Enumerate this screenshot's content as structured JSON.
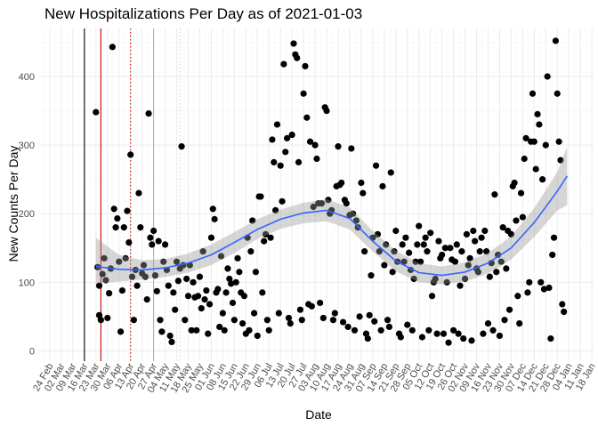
{
  "chart_data": {
    "type": "scatter",
    "title": "New Hospitalizations Per Day as of 2021-01-03",
    "xlabel": "Date",
    "ylabel": "New Counts Per Day",
    "xlim": [
      "2020-02-17",
      "2021-01-19"
    ],
    "ylim": [
      -15,
      470
    ],
    "y_ticks": [
      0,
      100,
      200,
      300,
      400
    ],
    "x_tick_dates": [
      "2020-02-24",
      "2020-03-02",
      "2020-03-09",
      "2020-03-16",
      "2020-03-23",
      "2020-03-30",
      "2020-04-06",
      "2020-04-13",
      "2020-04-20",
      "2020-04-27",
      "2020-05-04",
      "2020-05-11",
      "2020-05-18",
      "2020-05-25",
      "2020-06-01",
      "2020-06-08",
      "2020-06-15",
      "2020-06-22",
      "2020-06-29",
      "2020-07-06",
      "2020-07-13",
      "2020-07-20",
      "2020-07-27",
      "2020-08-03",
      "2020-08-10",
      "2020-08-17",
      "2020-08-24",
      "2020-08-31",
      "2020-09-07",
      "2020-09-14",
      "2020-09-21",
      "2020-09-28",
      "2020-10-05",
      "2020-10-12",
      "2020-10-19",
      "2020-10-26",
      "2020-11-02",
      "2020-11-09",
      "2020-11-16",
      "2020-11-23",
      "2020-11-30",
      "2020-12-07",
      "2020-12-14",
      "2020-12-21",
      "2020-12-28",
      "2021-01-04",
      "2021-01-11",
      "2021-01-18"
    ],
    "x_tick_labels": [
      "24 Feb",
      "02 Mar",
      "09 Mar",
      "16 Mar",
      "23 Mar",
      "30 Mar",
      "06 Apr",
      "13 Apr",
      "20 Apr",
      "27 Apr",
      "04 May",
      "11 May",
      "18 May",
      "25 May",
      "01 Jun",
      "08 Jun",
      "15 Jun",
      "22 Jun",
      "29 Jun",
      "06 Jul",
      "13 Jul",
      "20 Jul",
      "27 Jul",
      "03 Aug",
      "10 Aug",
      "17 Aug",
      "24 Aug",
      "31 Aug",
      "07 Sep",
      "14 Sep",
      "21 Sep",
      "28 Sep",
      "05 Oct",
      "12 Oct",
      "19 Oct",
      "26 Oct",
      "02 Nov",
      "09 Nov",
      "16 Nov",
      "23 Nov",
      "30 Nov",
      "07 Dec",
      "14 Dec",
      "21 Dec",
      "28 Dec",
      "04 Jan",
      "11 Jan",
      "18 Jan"
    ],
    "grid": true,
    "vlines": [
      {
        "date": "2020-03-16",
        "color": "#000000",
        "style": "solid"
      },
      {
        "date": "2020-03-26",
        "color": "#cc0000",
        "style": "solid"
      },
      {
        "date": "2020-04-13",
        "color": "#cc0000",
        "style": "dotted"
      },
      {
        "date": "2020-04-27",
        "color": "#e8a0a0",
        "style": "solid"
      },
      {
        "date": "2020-05-13",
        "color": "#f0c0c0",
        "style": "dotted"
      }
    ],
    "smooth": {
      "color": "#3366ff",
      "band_color": "#999999",
      "x": [
        "2020-03-23",
        "2020-04-06",
        "2020-04-20",
        "2020-05-04",
        "2020-05-18",
        "2020-06-01",
        "2020-06-15",
        "2020-06-29",
        "2020-07-13",
        "2020-07-27",
        "2020-08-10",
        "2020-08-24",
        "2020-09-07",
        "2020-09-21",
        "2020-10-05",
        "2020-10-19",
        "2020-11-02",
        "2020-11-16",
        "2020-11-30",
        "2020-12-14",
        "2020-12-28",
        "2021-01-03"
      ],
      "y": [
        123,
        119,
        118,
        121,
        128,
        140,
        158,
        177,
        192,
        201,
        205,
        193,
        160,
        131,
        114,
        110,
        115,
        128,
        150,
        187,
        233,
        255
      ],
      "lower": [
        98,
        101,
        104,
        108,
        114,
        125,
        143,
        163,
        178,
        186,
        189,
        177,
        145,
        116,
        100,
        97,
        101,
        113,
        133,
        166,
        205,
        212
      ],
      "upper": [
        165,
        140,
        132,
        134,
        142,
        155,
        173,
        192,
        206,
        216,
        221,
        209,
        175,
        146,
        128,
        123,
        129,
        143,
        167,
        208,
        261,
        298
      ]
    },
    "points": [
      [
        "2020-03-23",
        348
      ],
      [
        "2020-03-24",
        122
      ],
      [
        "2020-03-25",
        95
      ],
      [
        "2020-03-25",
        52
      ],
      [
        "2020-03-26",
        45
      ],
      [
        "2020-03-27",
        112
      ],
      [
        "2020-03-28",
        135
      ],
      [
        "2020-03-29",
        103
      ],
      [
        "2020-03-30",
        48
      ],
      [
        "2020-03-31",
        84
      ],
      [
        "2020-04-01",
        120
      ],
      [
        "2020-04-02",
        443
      ],
      [
        "2020-04-03",
        207
      ],
      [
        "2020-04-04",
        180
      ],
      [
        "2020-04-05",
        193
      ],
      [
        "2020-04-06",
        130
      ],
      [
        "2020-04-07",
        28
      ],
      [
        "2020-04-08",
        88
      ],
      [
        "2020-04-09",
        180
      ],
      [
        "2020-04-10",
        135
      ],
      [
        "2020-04-11",
        204
      ],
      [
        "2020-04-12",
        158
      ],
      [
        "2020-04-13",
        286
      ],
      [
        "2020-04-14",
        108
      ],
      [
        "2020-04-15",
        45
      ],
      [
        "2020-04-16",
        118
      ],
      [
        "2020-04-17",
        95
      ],
      [
        "2020-04-18",
        230
      ],
      [
        "2020-04-19",
        180
      ],
      [
        "2020-04-20",
        113
      ],
      [
        "2020-04-21",
        125
      ],
      [
        "2020-04-22",
        108
      ],
      [
        "2020-04-23",
        75
      ],
      [
        "2020-04-24",
        346
      ],
      [
        "2020-04-25",
        165
      ],
      [
        "2020-04-26",
        155
      ],
      [
        "2020-04-27",
        175
      ],
      [
        "2020-04-28",
        110
      ],
      [
        "2020-04-29",
        87
      ],
      [
        "2020-04-30",
        160
      ],
      [
        "2020-05-01",
        45
      ],
      [
        "2020-05-02",
        28
      ],
      [
        "2020-05-03",
        130
      ],
      [
        "2020-05-04",
        155
      ],
      [
        "2020-05-05",
        118
      ],
      [
        "2020-05-06",
        95
      ],
      [
        "2020-05-07",
        22
      ],
      [
        "2020-05-08",
        13
      ],
      [
        "2020-05-09",
        85
      ],
      [
        "2020-05-10",
        60
      ],
      [
        "2020-05-11",
        130
      ],
      [
        "2020-05-12",
        102
      ],
      [
        "2020-05-13",
        120
      ],
      [
        "2020-05-14",
        298
      ],
      [
        "2020-05-15",
        125
      ],
      [
        "2020-05-16",
        45
      ],
      [
        "2020-05-17",
        105
      ],
      [
        "2020-05-18",
        80
      ],
      [
        "2020-05-19",
        125
      ],
      [
        "2020-05-20",
        30
      ],
      [
        "2020-05-21",
        100
      ],
      [
        "2020-05-22",
        78
      ],
      [
        "2020-05-23",
        30
      ],
      [
        "2020-05-24",
        80
      ],
      [
        "2020-05-25",
        108
      ],
      [
        "2020-05-26",
        62
      ],
      [
        "2020-05-27",
        145
      ],
      [
        "2020-05-28",
        75
      ],
      [
        "2020-05-29",
        88
      ],
      [
        "2020-05-30",
        25
      ],
      [
        "2020-05-31",
        68
      ],
      [
        "2020-06-01",
        165
      ],
      [
        "2020-06-02",
        207
      ],
      [
        "2020-06-03",
        192
      ],
      [
        "2020-06-04",
        85
      ],
      [
        "2020-06-05",
        90
      ],
      [
        "2020-06-06",
        35
      ],
      [
        "2020-06-07",
        138
      ],
      [
        "2020-06-08",
        55
      ],
      [
        "2020-06-09",
        30
      ],
      [
        "2020-06-10",
        85
      ],
      [
        "2020-06-11",
        120
      ],
      [
        "2020-06-12",
        105
      ],
      [
        "2020-06-13",
        98
      ],
      [
        "2020-06-14",
        70
      ],
      [
        "2020-06-15",
        45
      ],
      [
        "2020-06-16",
        100
      ],
      [
        "2020-06-17",
        135
      ],
      [
        "2020-06-18",
        115
      ],
      [
        "2020-06-19",
        85
      ],
      [
        "2020-06-20",
        40
      ],
      [
        "2020-06-21",
        80
      ],
      [
        "2020-06-22",
        25
      ],
      [
        "2020-06-23",
        165
      ],
      [
        "2020-06-24",
        30
      ],
      [
        "2020-06-25",
        145
      ],
      [
        "2020-06-26",
        190
      ],
      [
        "2020-06-27",
        55
      ],
      [
        "2020-06-28",
        115
      ],
      [
        "2020-06-29",
        22
      ],
      [
        "2020-06-30",
        225
      ],
      [
        "2020-07-01",
        225
      ],
      [
        "2020-07-02",
        85
      ],
      [
        "2020-07-03",
        160
      ],
      [
        "2020-07-04",
        170
      ],
      [
        "2020-07-05",
        45
      ],
      [
        "2020-07-06",
        30
      ],
      [
        "2020-07-07",
        165
      ],
      [
        "2020-07-08",
        308
      ],
      [
        "2020-07-09",
        275
      ],
      [
        "2020-07-10",
        205
      ],
      [
        "2020-07-11",
        330
      ],
      [
        "2020-07-12",
        55
      ],
      [
        "2020-07-13",
        270
      ],
      [
        "2020-07-14",
        218
      ],
      [
        "2020-07-15",
        418
      ],
      [
        "2020-07-16",
        290
      ],
      [
        "2020-07-17",
        310
      ],
      [
        "2020-07-18",
        48
      ],
      [
        "2020-07-19",
        40
      ],
      [
        "2020-07-20",
        315
      ],
      [
        "2020-07-21",
        448
      ],
      [
        "2020-07-22",
        432
      ],
      [
        "2020-07-23",
        427
      ],
      [
        "2020-07-24",
        275
      ],
      [
        "2020-07-25",
        60
      ],
      [
        "2020-07-26",
        45
      ],
      [
        "2020-07-27",
        375
      ],
      [
        "2020-07-28",
        415
      ],
      [
        "2020-07-29",
        340
      ],
      [
        "2020-07-30",
        68
      ],
      [
        "2020-07-31",
        305
      ],
      [
        "2020-08-01",
        65
      ],
      [
        "2020-08-02",
        210
      ],
      [
        "2020-08-03",
        300
      ],
      [
        "2020-08-04",
        280
      ],
      [
        "2020-08-05",
        215
      ],
      [
        "2020-08-06",
        70
      ],
      [
        "2020-08-07",
        215
      ],
      [
        "2020-08-08",
        48
      ],
      [
        "2020-08-09",
        355
      ],
      [
        "2020-08-10",
        350
      ],
      [
        "2020-08-11",
        220
      ],
      [
        "2020-08-12",
        200
      ],
      [
        "2020-08-13",
        205
      ],
      [
        "2020-08-14",
        45
      ],
      [
        "2020-08-15",
        55
      ],
      [
        "2020-08-16",
        240
      ],
      [
        "2020-08-17",
        298
      ],
      [
        "2020-08-18",
        242
      ],
      [
        "2020-08-19",
        245
      ],
      [
        "2020-08-20",
        42
      ],
      [
        "2020-08-21",
        220
      ],
      [
        "2020-08-22",
        215
      ],
      [
        "2020-08-23",
        35
      ],
      [
        "2020-08-24",
        198
      ],
      [
        "2020-08-25",
        295
      ],
      [
        "2020-08-26",
        200
      ],
      [
        "2020-08-27",
        30
      ],
      [
        "2020-08-28",
        190
      ],
      [
        "2020-08-29",
        180
      ],
      [
        "2020-08-30",
        50
      ],
      [
        "2020-08-31",
        245
      ],
      [
        "2020-09-01",
        230
      ],
      [
        "2020-09-02",
        145
      ],
      [
        "2020-09-03",
        25
      ],
      [
        "2020-09-04",
        18
      ],
      [
        "2020-09-05",
        52
      ],
      [
        "2020-09-06",
        110
      ],
      [
        "2020-09-07",
        165
      ],
      [
        "2020-09-08",
        43
      ],
      [
        "2020-09-09",
        270
      ],
      [
        "2020-09-10",
        170
      ],
      [
        "2020-09-11",
        145
      ],
      [
        "2020-09-12",
        30
      ],
      [
        "2020-09-13",
        240
      ],
      [
        "2020-09-14",
        125
      ],
      [
        "2020-09-15",
        155
      ],
      [
        "2020-09-16",
        45
      ],
      [
        "2020-09-17",
        35
      ],
      [
        "2020-09-18",
        260
      ],
      [
        "2020-09-19",
        115
      ],
      [
        "2020-09-20",
        145
      ],
      [
        "2020-09-21",
        175
      ],
      [
        "2020-09-22",
        130
      ],
      [
        "2020-09-23",
        25
      ],
      [
        "2020-09-24",
        20
      ],
      [
        "2020-09-25",
        155
      ],
      [
        "2020-09-26",
        130
      ],
      [
        "2020-09-27",
        165
      ],
      [
        "2020-09-28",
        38
      ],
      [
        "2020-09-29",
        143
      ],
      [
        "2020-09-30",
        118
      ],
      [
        "2020-10-01",
        30
      ],
      [
        "2020-10-02",
        105
      ],
      [
        "2020-10-03",
        130
      ],
      [
        "2020-10-04",
        155
      ],
      [
        "2020-10-05",
        182
      ],
      [
        "2020-10-06",
        130
      ],
      [
        "2020-10-07",
        20
      ],
      [
        "2020-10-08",
        155
      ],
      [
        "2020-10-09",
        165
      ],
      [
        "2020-10-10",
        145
      ],
      [
        "2020-10-11",
        30
      ],
      [
        "2020-10-12",
        172
      ],
      [
        "2020-10-13",
        80
      ],
      [
        "2020-10-14",
        100
      ],
      [
        "2020-10-15",
        105
      ],
      [
        "2020-10-16",
        25
      ],
      [
        "2020-10-17",
        160
      ],
      [
        "2020-10-18",
        135
      ],
      [
        "2020-10-19",
        140
      ],
      [
        "2020-10-20",
        25
      ],
      [
        "2020-10-21",
        150
      ],
      [
        "2020-10-22",
        100
      ],
      [
        "2020-10-23",
        12
      ],
      [
        "2020-10-24",
        150
      ],
      [
        "2020-10-25",
        133
      ],
      [
        "2020-10-26",
        30
      ],
      [
        "2020-10-27",
        130
      ],
      [
        "2020-10-28",
        155
      ],
      [
        "2020-10-29",
        25
      ],
      [
        "2020-10-30",
        95
      ],
      [
        "2020-10-31",
        145
      ],
      [
        "2020-11-01",
        18
      ],
      [
        "2020-11-02",
        105
      ],
      [
        "2020-11-03",
        170
      ],
      [
        "2020-11-04",
        125
      ],
      [
        "2020-11-05",
        135
      ],
      [
        "2020-11-06",
        15
      ],
      [
        "2020-11-07",
        175
      ],
      [
        "2020-11-08",
        160
      ],
      [
        "2020-11-09",
        120
      ],
      [
        "2020-11-10",
        115
      ],
      [
        "2020-11-11",
        145
      ],
      [
        "2020-11-12",
        165
      ],
      [
        "2020-11-13",
        25
      ],
      [
        "2020-11-14",
        175
      ],
      [
        "2020-11-15",
        145
      ],
      [
        "2020-11-16",
        40
      ],
      [
        "2020-11-17",
        108
      ],
      [
        "2020-11-18",
        128
      ],
      [
        "2020-11-19",
        30
      ],
      [
        "2020-11-20",
        228
      ],
      [
        "2020-11-21",
        115
      ],
      [
        "2020-11-22",
        140
      ],
      [
        "2020-11-23",
        22
      ],
      [
        "2020-11-24",
        130
      ],
      [
        "2020-11-25",
        180
      ],
      [
        "2020-11-26",
        45
      ],
      [
        "2020-11-27",
        120
      ],
      [
        "2020-11-28",
        175
      ],
      [
        "2020-11-29",
        60
      ],
      [
        "2020-11-30",
        170
      ],
      [
        "2020-12-01",
        240
      ],
      [
        "2020-12-02",
        245
      ],
      [
        "2020-12-03",
        190
      ],
      [
        "2020-12-04",
        80
      ],
      [
        "2020-12-05",
        40
      ],
      [
        "2020-12-06",
        230
      ],
      [
        "2020-12-07",
        195
      ],
      [
        "2020-12-08",
        280
      ],
      [
        "2020-12-09",
        310
      ],
      [
        "2020-12-10",
        85
      ],
      [
        "2020-12-11",
        100
      ],
      [
        "2020-12-12",
        305
      ],
      [
        "2020-12-13",
        375
      ],
      [
        "2020-12-14",
        305
      ],
      [
        "2020-12-15",
        265
      ],
      [
        "2020-12-16",
        345
      ],
      [
        "2020-12-17",
        330
      ],
      [
        "2020-12-18",
        100
      ],
      [
        "2020-12-19",
        250
      ],
      [
        "2020-12-20",
        90
      ],
      [
        "2020-12-21",
        300
      ],
      [
        "2020-12-22",
        400
      ],
      [
        "2020-12-23",
        92
      ],
      [
        "2020-12-24",
        18
      ],
      [
        "2020-12-25",
        140
      ],
      [
        "2020-12-26",
        165
      ],
      [
        "2020-12-27",
        452
      ],
      [
        "2020-12-28",
        375
      ],
      [
        "2020-12-29",
        305
      ],
      [
        "2020-12-30",
        278
      ],
      [
        "2020-12-31",
        68
      ],
      [
        "2021-01-01",
        57
      ]
    ]
  }
}
